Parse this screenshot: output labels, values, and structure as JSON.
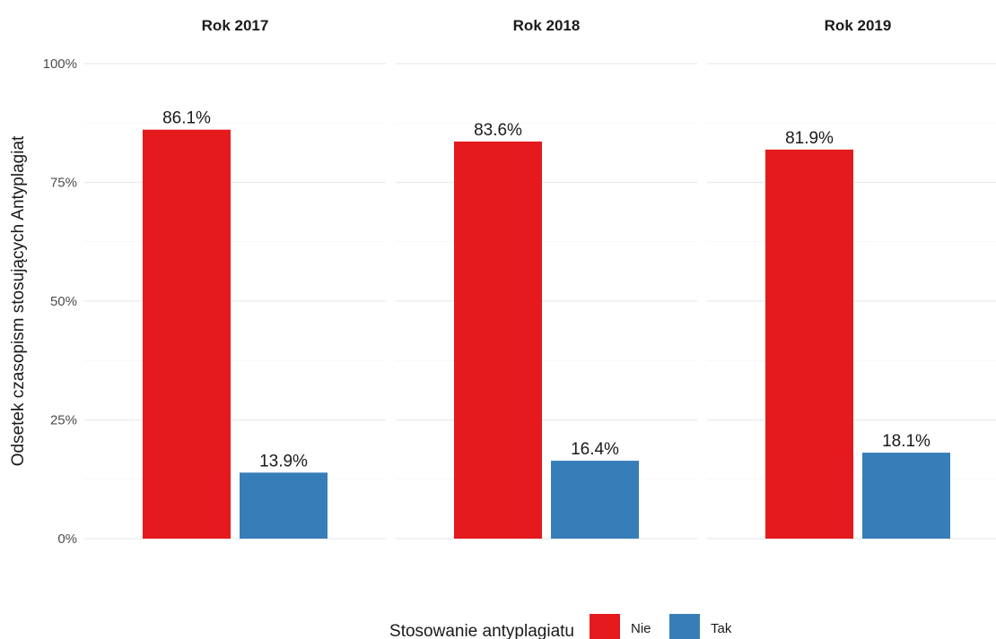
{
  "chart_data": {
    "type": "bar",
    "title": "",
    "xlabel": "",
    "ylabel": "Odsetek czasopism stosujących Antyplagiat",
    "ylim": [
      0,
      100
    ],
    "y_ticks": [
      0,
      25,
      50,
      75,
      100
    ],
    "y_tick_labels": [
      "0%",
      "25%",
      "50%",
      "75%",
      "100%"
    ],
    "grid": true,
    "legend_placement": "bottom",
    "legend_title": "Stosowanie antyplagiatu",
    "facets": [
      "Rok 2017",
      "Rok 2018",
      "Rok 2019"
    ],
    "series": [
      {
        "name": "Nie",
        "color": "#e41a1c",
        "values": [
          86.1,
          83.6,
          81.9
        ],
        "labels": [
          "86.1%",
          "83.6%",
          "81.9%"
        ]
      },
      {
        "name": "Tak",
        "color": "#377eb8",
        "values": [
          13.9,
          16.4,
          18.1
        ],
        "labels": [
          "13.9%",
          "16.4%",
          "18.1%"
        ]
      }
    ]
  }
}
